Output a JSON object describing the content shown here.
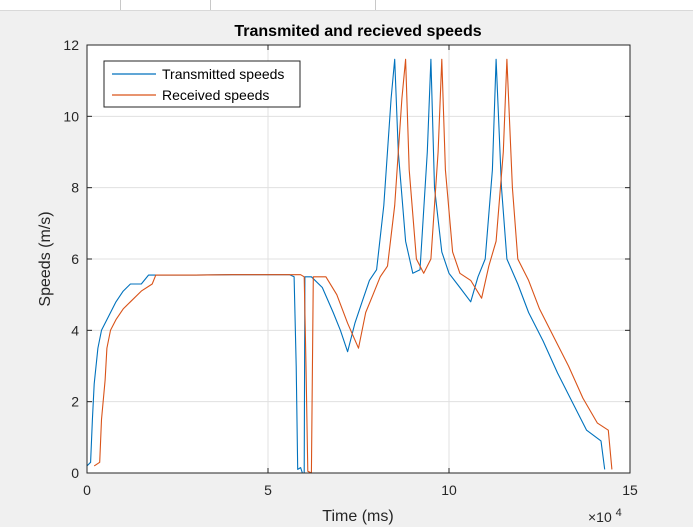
{
  "chart_data": {
    "type": "line",
    "title": "Transmited and recieved speeds",
    "xlabel": "Time (ms)",
    "ylabel": "Speeds (m/s)",
    "x_multiplier": "×10",
    "x_multiplier_exp": "4",
    "xlim": [
      0,
      15
    ],
    "ylim": [
      0,
      12
    ],
    "x_ticks": [
      "0",
      "5",
      "10",
      "15"
    ],
    "y_ticks": [
      "0",
      "2",
      "4",
      "6",
      "8",
      "10",
      "12"
    ],
    "grid": true,
    "legend_position": "top-left",
    "series": [
      {
        "name": "Transmitted speeds",
        "color": "#0072BD",
        "points": [
          [
            0,
            0.2
          ],
          [
            0.1,
            0.3
          ],
          [
            0.15,
            1.5
          ],
          [
            0.2,
            2.5
          ],
          [
            0.3,
            3.5
          ],
          [
            0.4,
            4.0
          ],
          [
            0.6,
            4.4
          ],
          [
            0.8,
            4.8
          ],
          [
            1.0,
            5.1
          ],
          [
            1.2,
            5.3
          ],
          [
            1.5,
            5.3
          ],
          [
            1.7,
            5.55
          ],
          [
            2.0,
            5.55
          ],
          [
            3.0,
            5.55
          ],
          [
            4.0,
            5.56
          ],
          [
            5.0,
            5.56
          ],
          [
            5.6,
            5.56
          ],
          [
            5.72,
            5.5
          ],
          [
            5.78,
            3.0
          ],
          [
            5.82,
            0.1
          ],
          [
            5.9,
            0.15
          ],
          [
            5.95,
            0.0
          ],
          [
            6.0,
            0.0
          ],
          [
            6.02,
            5.5
          ],
          [
            6.2,
            5.5
          ],
          [
            6.5,
            5.2
          ],
          [
            6.8,
            4.5
          ],
          [
            7.0,
            4.0
          ],
          [
            7.2,
            3.4
          ],
          [
            7.4,
            4.2
          ],
          [
            7.6,
            4.8
          ],
          [
            7.8,
            5.4
          ],
          [
            8.0,
            5.7
          ],
          [
            8.2,
            7.5
          ],
          [
            8.4,
            10.5
          ],
          [
            8.5,
            11.6
          ],
          [
            8.6,
            9.0
          ],
          [
            8.8,
            6.5
          ],
          [
            9.0,
            5.6
          ],
          [
            9.2,
            5.7
          ],
          [
            9.4,
            9.0
          ],
          [
            9.5,
            11.6
          ],
          [
            9.6,
            8.0
          ],
          [
            9.8,
            6.2
          ],
          [
            10.0,
            5.6
          ],
          [
            10.3,
            5.2
          ],
          [
            10.6,
            4.8
          ],
          [
            10.8,
            5.5
          ],
          [
            11.0,
            6.0
          ],
          [
            11.2,
            8.5
          ],
          [
            11.3,
            11.6
          ],
          [
            11.45,
            8.0
          ],
          [
            11.6,
            6.0
          ],
          [
            11.9,
            5.3
          ],
          [
            12.2,
            4.5
          ],
          [
            12.6,
            3.7
          ],
          [
            13.0,
            2.8
          ],
          [
            13.4,
            2.0
          ],
          [
            13.8,
            1.2
          ],
          [
            14.2,
            0.9
          ],
          [
            14.3,
            0.1
          ]
        ]
      },
      {
        "name": "Received speeds",
        "color": "#D95319",
        "points": [
          [
            0.2,
            0.2
          ],
          [
            0.35,
            0.3
          ],
          [
            0.4,
            1.5
          ],
          [
            0.5,
            2.6
          ],
          [
            0.55,
            3.5
          ],
          [
            0.65,
            4.0
          ],
          [
            0.8,
            4.3
          ],
          [
            1.0,
            4.6
          ],
          [
            1.2,
            4.8
          ],
          [
            1.5,
            5.1
          ],
          [
            1.8,
            5.3
          ],
          [
            1.9,
            5.55
          ],
          [
            2.2,
            5.55
          ],
          [
            3.0,
            5.55
          ],
          [
            4.0,
            5.56
          ],
          [
            5.0,
            5.56
          ],
          [
            5.9,
            5.56
          ],
          [
            6.0,
            5.5
          ],
          [
            6.05,
            3.0
          ],
          [
            6.1,
            0.05
          ],
          [
            6.2,
            0.0
          ],
          [
            6.25,
            5.5
          ],
          [
            6.6,
            5.5
          ],
          [
            6.9,
            5.0
          ],
          [
            7.2,
            4.2
          ],
          [
            7.5,
            3.5
          ],
          [
            7.7,
            4.5
          ],
          [
            7.9,
            5.0
          ],
          [
            8.1,
            5.5
          ],
          [
            8.3,
            5.8
          ],
          [
            8.5,
            7.5
          ],
          [
            8.7,
            10.5
          ],
          [
            8.8,
            11.6
          ],
          [
            8.9,
            8.5
          ],
          [
            9.1,
            6.0
          ],
          [
            9.3,
            5.6
          ],
          [
            9.5,
            6.0
          ],
          [
            9.7,
            9.0
          ],
          [
            9.8,
            11.6
          ],
          [
            9.9,
            8.5
          ],
          [
            10.1,
            6.2
          ],
          [
            10.3,
            5.6
          ],
          [
            10.6,
            5.4
          ],
          [
            10.9,
            4.9
          ],
          [
            11.1,
            5.8
          ],
          [
            11.3,
            6.5
          ],
          [
            11.5,
            9.0
          ],
          [
            11.6,
            11.6
          ],
          [
            11.75,
            8.0
          ],
          [
            11.9,
            6.0
          ],
          [
            12.2,
            5.4
          ],
          [
            12.5,
            4.6
          ],
          [
            12.9,
            3.8
          ],
          [
            13.3,
            3.0
          ],
          [
            13.7,
            2.1
          ],
          [
            14.1,
            1.4
          ],
          [
            14.4,
            1.2
          ],
          [
            14.5,
            0.1
          ]
        ]
      }
    ]
  }
}
